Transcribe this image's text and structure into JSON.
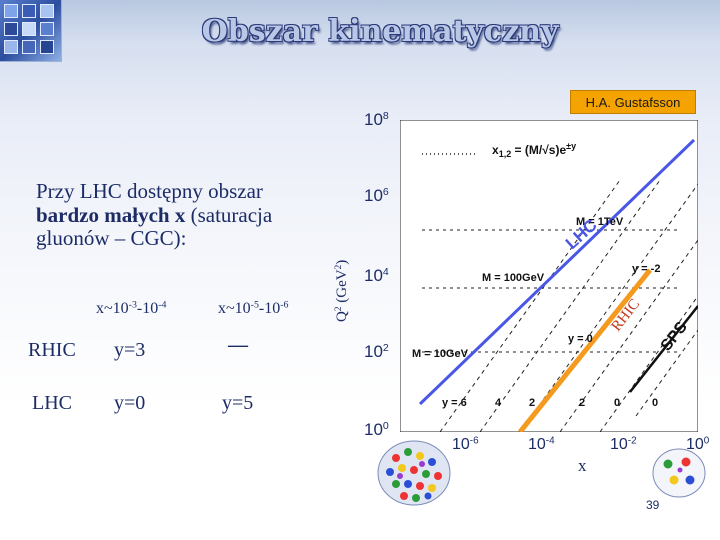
{
  "slide": {
    "title": "Obszar kinematyczny",
    "author": "H.A. Gustafsson",
    "page_number": "39"
  },
  "intro": {
    "line1": "Przy LHC dostępny obszar",
    "line2_bold": "bardzo małych x",
    "line2_rest": " (saturacja",
    "line3": "gluonów – CGC):"
  },
  "comparison_table": {
    "col1_head": "x~10",
    "col1_exp1": "-3",
    "col1_mid": "-10",
    "col1_exp2": "-4",
    "col2_head": "x~10",
    "col2_exp1": "-5",
    "col2_mid": "-10",
    "col2_exp2": "-6",
    "rows": [
      {
        "label": "RHIC",
        "val1": "y=3",
        "val2": "—"
      },
      {
        "label": "LHC",
        "val1": "y=0",
        "val2": "y=5"
      }
    ]
  },
  "plot": {
    "y_axis_label": "Q",
    "y_axis_label_sup": "2",
    "y_axis_label_unit": " (GeV",
    "y_axis_label_unit_sup": "2",
    "y_axis_label_close": ")",
    "x_axis_label": "x",
    "y_ticks": [
      {
        "base": "10",
        "exp": "8"
      },
      {
        "base": "10",
        "exp": "6"
      },
      {
        "base": "10",
        "exp": "4"
      },
      {
        "base": "10",
        "exp": "2"
      },
      {
        "base": "10",
        "exp": "0"
      }
    ],
    "x_ticks": [
      {
        "base": "10",
        "exp": "-6"
      },
      {
        "base": "10",
        "exp": "-4"
      },
      {
        "base": "10",
        "exp": "-2"
      },
      {
        "base": "10",
        "exp": "0"
      }
    ],
    "formula": "x1,2 = (M/√s)e±y",
    "formula_x": "x",
    "formula_sub": "1,2",
    "formula_eq": " = (M/√s)e",
    "formula_sup": "±y",
    "mass_labels": [
      "M = 1TeV",
      "M = 100GeV",
      "M = 10GeV"
    ],
    "rapidity_labels": [
      "y = -2",
      "y = 0",
      "y = 6",
      "4",
      "2",
      "2",
      "0",
      "0"
    ],
    "collider_labels": [
      "LHC",
      "RHIC",
      "SPS"
    ],
    "colors": {
      "lhc": "#4a57e6",
      "rhic": "#f39a1f",
      "grid": "#222222",
      "text": "#1c2c66"
    }
  }
}
